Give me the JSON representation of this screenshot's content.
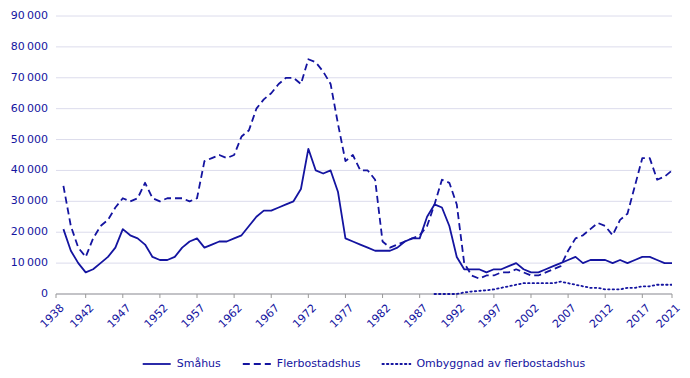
{
  "chart_data": {
    "type": "line",
    "color": "#1414a0",
    "grid": true,
    "legend": "bottom",
    "xlim": [
      1938,
      2021
    ],
    "ylim": [
      0,
      90000
    ],
    "xticks": [
      1938,
      1942,
      1947,
      1952,
      1957,
      1962,
      1967,
      1972,
      1977,
      1982,
      1987,
      1992,
      1997,
      2002,
      2007,
      2012,
      2017,
      2021
    ],
    "yticks": [
      0,
      {
        "value": 10000,
        "label": "10 000"
      },
      {
        "value": 20000,
        "label": "20 000"
      },
      {
        "value": 30000,
        "label": "30 000"
      },
      {
        "value": 40000,
        "label": "40 000"
      },
      {
        "value": 50000,
        "label": "50 000"
      },
      {
        "value": 60000,
        "label": "60 000"
      },
      {
        "value": 70000,
        "label": "70 000"
      },
      {
        "value": 80000,
        "label": "80 000"
      },
      {
        "value": 90000,
        "label": "90 000"
      }
    ],
    "series": [
      {
        "name": "Småhus",
        "color": "#1414a0",
        "line_style": "solid",
        "x": [
          1939,
          1940,
          1941,
          1942,
          1943,
          1944,
          1945,
          1946,
          1947,
          1948,
          1949,
          1950,
          1951,
          1952,
          1953,
          1954,
          1955,
          1956,
          1957,
          1958,
          1959,
          1960,
          1961,
          1962,
          1963,
          1964,
          1965,
          1966,
          1967,
          1968,
          1969,
          1970,
          1971,
          1972,
          1973,
          1974,
          1975,
          1976,
          1977,
          1978,
          1979,
          1980,
          1981,
          1982,
          1983,
          1984,
          1985,
          1986,
          1987,
          1988,
          1989,
          1990,
          1991,
          1992,
          1993,
          1994,
          1995,
          1996,
          1997,
          1998,
          1999,
          2000,
          2001,
          2002,
          2003,
          2004,
          2005,
          2006,
          2007,
          2008,
          2009,
          2010,
          2011,
          2012,
          2013,
          2014,
          2015,
          2016,
          2017,
          2018,
          2019,
          2020,
          2021
        ],
        "values": [
          21000,
          14000,
          10000,
          7000,
          8000,
          10000,
          12000,
          15000,
          21000,
          19000,
          18000,
          16000,
          12000,
          11000,
          11000,
          12000,
          15000,
          17000,
          18000,
          15000,
          16000,
          17000,
          17000,
          18000,
          19000,
          22000,
          25000,
          27000,
          27000,
          28000,
          29000,
          30000,
          34000,
          47000,
          40000,
          39000,
          40000,
          33000,
          18000,
          17000,
          16000,
          15000,
          14000,
          14000,
          14000,
          15000,
          17000,
          18000,
          18000,
          25000,
          29000,
          28000,
          22000,
          12000,
          8000,
          8000,
          8000,
          7000,
          8000,
          8000,
          9000,
          10000,
          8000,
          7000,
          7000,
          8000,
          9000,
          10000,
          11000,
          12000,
          10000,
          11000,
          11000,
          11000,
          10000,
          11000,
          10000,
          11000,
          12000,
          12000,
          11000,
          10000,
          10000
        ]
      },
      {
        "name": "Flerbostadshus",
        "color": "#1414a0",
        "line_style": "dashed",
        "x": [
          1939,
          1940,
          1941,
          1942,
          1943,
          1944,
          1945,
          1946,
          1947,
          1948,
          1949,
          1950,
          1951,
          1952,
          1953,
          1954,
          1955,
          1956,
          1957,
          1958,
          1959,
          1960,
          1961,
          1962,
          1963,
          1964,
          1965,
          1966,
          1967,
          1968,
          1969,
          1970,
          1971,
          1972,
          1973,
          1974,
          1975,
          1976,
          1977,
          1978,
          1979,
          1980,
          1981,
          1982,
          1983,
          1984,
          1985,
          1986,
          1987,
          1988,
          1989,
          1990,
          1991,
          1992,
          1993,
          1994,
          1995,
          1996,
          1997,
          1998,
          1999,
          2000,
          2001,
          2002,
          2003,
          2004,
          2005,
          2006,
          2007,
          2008,
          2009,
          2010,
          2011,
          2012,
          2013,
          2014,
          2015,
          2016,
          2017,
          2018,
          2019,
          2020,
          2021
        ],
        "values": [
          35000,
          22000,
          15000,
          12000,
          18000,
          22000,
          24000,
          28000,
          31000,
          30000,
          31000,
          36000,
          31000,
          30000,
          31000,
          31000,
          31000,
          30000,
          31000,
          43000,
          44000,
          45000,
          44000,
          45000,
          51000,
          53000,
          60000,
          63000,
          65000,
          68000,
          70000,
          70000,
          68000,
          76000,
          75000,
          72000,
          68000,
          55000,
          43000,
          45000,
          40000,
          40000,
          37000,
          17000,
          15000,
          16000,
          17000,
          18000,
          19000,
          22000,
          29000,
          37000,
          36000,
          29000,
          10000,
          6000,
          5000,
          6000,
          6000,
          7000,
          7000,
          8000,
          7000,
          6000,
          6000,
          7000,
          8000,
          9000,
          14000,
          18000,
          19000,
          21000,
          23000,
          22000,
          19000,
          24000,
          26000,
          35000,
          44000,
          44000,
          37000,
          38000,
          40000
        ]
      },
      {
        "name": "Ombyggnad av flerbostadshus",
        "color": "#1414a0",
        "line_style": "dotted",
        "x": [
          1989,
          1990,
          1991,
          1992,
          1993,
          1994,
          1995,
          1996,
          1997,
          1998,
          1999,
          2000,
          2001,
          2002,
          2003,
          2004,
          2005,
          2006,
          2007,
          2008,
          2009,
          2010,
          2011,
          2012,
          2013,
          2014,
          2015,
          2016,
          2017,
          2018,
          2019,
          2020,
          2021
        ],
        "values": [
          0,
          0,
          0,
          0,
          500,
          800,
          1000,
          1200,
          1500,
          2000,
          2500,
          3000,
          3500,
          3500,
          3500,
          3500,
          3500,
          4000,
          3500,
          3000,
          2500,
          2000,
          2000,
          1500,
          1500,
          1500,
          2000,
          2000,
          2500,
          2500,
          3000,
          3000,
          3000
        ]
      }
    ]
  }
}
